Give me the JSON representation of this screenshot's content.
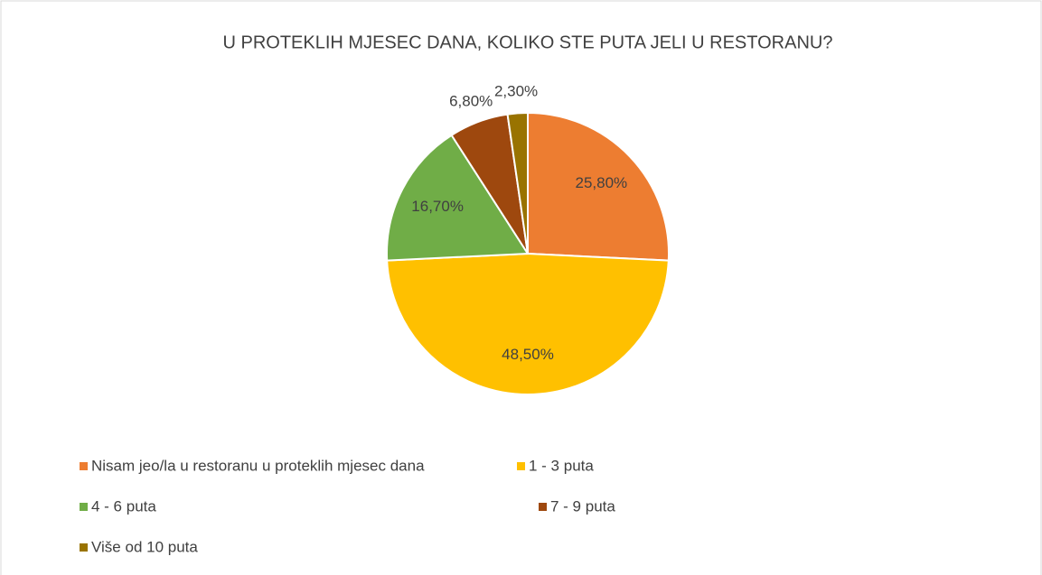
{
  "chart_data": {
    "type": "pie",
    "title": "U PROTEKLIH MJESEC DANA, KOLIKO STE PUTA JELI U RESTORANU?",
    "categories": [
      "Nisam jeo/la u restoranu u proteklih mjesec dana",
      "1 - 3 puta",
      "4 - 6 puta",
      "7 - 9 puta",
      "Više od 10 puta"
    ],
    "values": [
      25.8,
      48.5,
      16.7,
      6.8,
      2.3
    ],
    "value_labels": [
      "25,80%",
      "48,50%",
      "16,70%",
      "6,80%",
      "2,30%"
    ],
    "colors": [
      "#ed7d31",
      "#ffc000",
      "#70ad47",
      "#9e480e",
      "#997300"
    ],
    "legend": "bottom"
  }
}
